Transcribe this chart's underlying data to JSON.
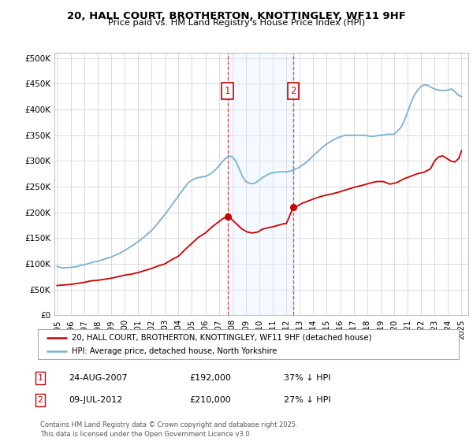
{
  "title": "20, HALL COURT, BROTHERTON, KNOTTINGLEY, WF11 9HF",
  "subtitle": "Price paid vs. HM Land Registry's House Price Index (HPI)",
  "background_color": "#ffffff",
  "plot_bg_color": "#ffffff",
  "grid_color": "#cccccc",
  "ylim": [
    0,
    510000
  ],
  "yticks": [
    0,
    50000,
    100000,
    150000,
    200000,
    250000,
    300000,
    350000,
    400000,
    450000,
    500000
  ],
  "ytick_labels": [
    "£0",
    "£50K",
    "£100K",
    "£150K",
    "£200K",
    "£250K",
    "£300K",
    "£350K",
    "£400K",
    "£450K",
    "£500K"
  ],
  "legend_line1": "20, HALL COURT, BROTHERTON, KNOTTINGLEY, WF11 9HF (detached house)",
  "legend_line2": "HPI: Average price, detached house, North Yorkshire",
  "sale1_date": "24-AUG-2007",
  "sale1_price": "£192,000",
  "sale1_hpi": "37% ↓ HPI",
  "sale2_date": "09-JUL-2012",
  "sale2_price": "£210,000",
  "sale2_hpi": "27% ↓ HPI",
  "footer": "Contains HM Land Registry data © Crown copyright and database right 2025.\nThis data is licensed under the Open Government Licence v3.0.",
  "line_color_red": "#cc0000",
  "line_color_blue": "#7ab0d4",
  "shade_color": "#ddeeff",
  "sale1_x": 2007.65,
  "sale2_x": 2012.52,
  "sale1_y": 192000,
  "sale2_y": 210000,
  "vline_color": "#dd4444",
  "shade_alpha": 0.35,
  "hpi_x": [
    1995.0,
    1995.25,
    1995.5,
    1995.75,
    1996.0,
    1996.25,
    1996.5,
    1996.75,
    1997.0,
    1997.25,
    1997.5,
    1997.75,
    1998.0,
    1998.25,
    1998.5,
    1998.75,
    1999.0,
    1999.25,
    1999.5,
    1999.75,
    2000.0,
    2000.25,
    2000.5,
    2000.75,
    2001.0,
    2001.25,
    2001.5,
    2001.75,
    2002.0,
    2002.25,
    2002.5,
    2002.75,
    2003.0,
    2003.25,
    2003.5,
    2003.75,
    2004.0,
    2004.25,
    2004.5,
    2004.75,
    2005.0,
    2005.25,
    2005.5,
    2005.75,
    2006.0,
    2006.25,
    2006.5,
    2006.75,
    2007.0,
    2007.25,
    2007.5,
    2007.75,
    2008.0,
    2008.25,
    2008.5,
    2008.75,
    2009.0,
    2009.25,
    2009.5,
    2009.75,
    2010.0,
    2010.25,
    2010.5,
    2010.75,
    2011.0,
    2011.25,
    2011.5,
    2011.75,
    2012.0,
    2012.25,
    2012.5,
    2012.75,
    2013.0,
    2013.25,
    2013.5,
    2013.75,
    2014.0,
    2014.25,
    2014.5,
    2014.75,
    2015.0,
    2015.25,
    2015.5,
    2015.75,
    2016.0,
    2016.25,
    2016.5,
    2016.75,
    2017.0,
    2017.25,
    2017.5,
    2017.75,
    2018.0,
    2018.25,
    2018.5,
    2018.75,
    2019.0,
    2019.25,
    2019.5,
    2019.75,
    2020.0,
    2020.25,
    2020.5,
    2020.75,
    2021.0,
    2021.25,
    2021.5,
    2021.75,
    2022.0,
    2022.25,
    2022.5,
    2022.75,
    2023.0,
    2023.25,
    2023.5,
    2023.75,
    2024.0,
    2024.25,
    2024.5,
    2024.75,
    2025.0
  ],
  "hpi_y": [
    95000,
    93000,
    92000,
    93000,
    93000,
    94000,
    95000,
    97000,
    98000,
    100000,
    102000,
    104000,
    105000,
    107000,
    109000,
    111000,
    113000,
    116000,
    119000,
    122000,
    126000,
    130000,
    134000,
    138000,
    143000,
    148000,
    153000,
    159000,
    165000,
    172000,
    180000,
    188000,
    196000,
    205000,
    214000,
    223000,
    232000,
    241000,
    250000,
    258000,
    263000,
    266000,
    268000,
    269000,
    270000,
    273000,
    277000,
    283000,
    290000,
    298000,
    305000,
    310000,
    308000,
    300000,
    285000,
    270000,
    260000,
    257000,
    256000,
    258000,
    263000,
    268000,
    272000,
    275000,
    277000,
    278000,
    279000,
    279000,
    279000,
    280000,
    282000,
    285000,
    288000,
    293000,
    298000,
    304000,
    310000,
    316000,
    322000,
    328000,
    333000,
    337000,
    341000,
    344000,
    347000,
    349000,
    350000,
    350000,
    350000,
    350000,
    350000,
    350000,
    349000,
    348000,
    348000,
    349000,
    350000,
    351000,
    352000,
    352000,
    352000,
    358000,
    365000,
    378000,
    395000,
    413000,
    428000,
    438000,
    445000,
    448000,
    447000,
    443000,
    440000,
    438000,
    437000,
    437000,
    438000,
    440000,
    435000,
    428000,
    425000
  ],
  "price_x": [
    1995.0,
    1995.5,
    1996.0,
    1996.5,
    1997.0,
    1997.5,
    1998.0,
    1998.5,
    1999.0,
    1999.5,
    2000.0,
    2000.5,
    2001.0,
    2001.5,
    2002.0,
    2002.5,
    2003.0,
    2003.5,
    2004.0,
    2004.5,
    2005.0,
    2005.5,
    2006.0,
    2006.5,
    2007.0,
    2007.3,
    2007.65,
    2007.9,
    2008.3,
    2008.7,
    2009.1,
    2009.5,
    2009.9,
    2010.2,
    2010.6,
    2011.0,
    2011.4,
    2011.8,
    2012.0,
    2012.52,
    2012.8,
    2013.2,
    2013.7,
    2014.2,
    2014.7,
    2015.2,
    2015.7,
    2016.2,
    2016.7,
    2017.2,
    2017.7,
    2018.2,
    2018.7,
    2019.2,
    2019.7,
    2020.2,
    2020.7,
    2021.2,
    2021.7,
    2022.2,
    2022.5,
    2022.7,
    2023.0,
    2023.3,
    2023.6,
    2023.9,
    2024.2,
    2024.5,
    2024.8,
    2025.0
  ],
  "price_y": [
    58000,
    59000,
    60000,
    62000,
    64000,
    67000,
    68000,
    70000,
    72000,
    75000,
    78000,
    80000,
    83000,
    87000,
    91000,
    96000,
    100000,
    108000,
    115000,
    128000,
    140000,
    152000,
    160000,
    172000,
    182000,
    188000,
    192000,
    188000,
    178000,
    168000,
    162000,
    160000,
    162000,
    167000,
    170000,
    172000,
    175000,
    178000,
    178000,
    210000,
    212000,
    218000,
    223000,
    228000,
    232000,
    235000,
    238000,
    242000,
    246000,
    250000,
    253000,
    257000,
    260000,
    260000,
    255000,
    258000,
    265000,
    270000,
    275000,
    278000,
    282000,
    285000,
    300000,
    308000,
    310000,
    305000,
    300000,
    298000,
    305000,
    320000
  ],
  "xtick_years": [
    1995,
    1996,
    1997,
    1998,
    1999,
    2000,
    2001,
    2002,
    2003,
    2004,
    2005,
    2006,
    2007,
    2008,
    2009,
    2010,
    2011,
    2012,
    2013,
    2014,
    2015,
    2016,
    2017,
    2018,
    2019,
    2020,
    2021,
    2022,
    2023,
    2024,
    2025
  ]
}
